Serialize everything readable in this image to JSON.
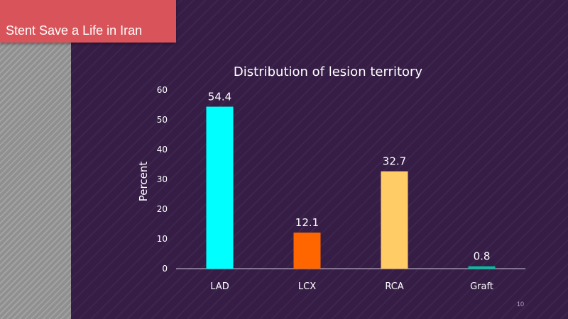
{
  "banner": {
    "title": "Stent Save a Life in Iran"
  },
  "slide_number": "10",
  "colors": {
    "background": "#361d46",
    "banner": "#d9545a",
    "text": "#ffffff",
    "axis": "#d0c8d8"
  },
  "chart_data": {
    "type": "bar",
    "title": "Distribution of lesion territory",
    "xlabel": "",
    "ylabel": "Percent",
    "categories": [
      "LAD",
      "LCX",
      "RCA",
      "Graft"
    ],
    "values": [
      54.4,
      12.1,
      32.7,
      0.8
    ],
    "value_labels": [
      "54.4",
      "12.1",
      "32.7",
      "0.8"
    ],
    "bar_colors": [
      "#00ffff",
      "#ff6600",
      "#ffcc66",
      "#00c0a0"
    ],
    "ylim": [
      0,
      60
    ],
    "yticks": [
      "0",
      "10",
      "20",
      "30",
      "40",
      "50",
      "60"
    ],
    "grid": false,
    "legend": "none"
  }
}
